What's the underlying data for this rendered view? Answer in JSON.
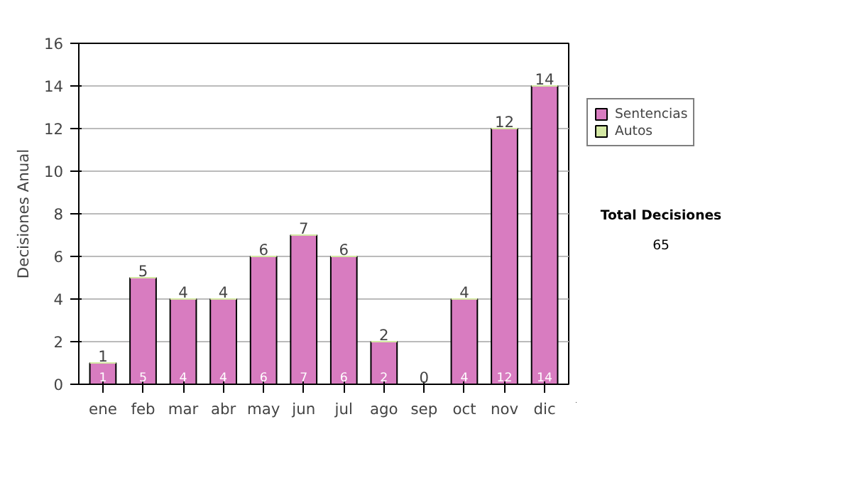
{
  "chart_data": {
    "type": "bar",
    "stacked": true,
    "ylabel": "Decisiones Anual",
    "categories": [
      "ene",
      "feb",
      "mar",
      "abr",
      "may",
      "jun",
      "jul",
      "ago",
      "sep",
      "oct",
      "nov",
      "dic"
    ],
    "series": [
      {
        "name": "Sentencias",
        "color": "#d87cc0",
        "values": [
          1,
          5,
          4,
          4,
          6,
          7,
          6,
          2,
          0,
          4,
          12,
          14
        ],
        "value_labels": [
          "1",
          "5",
          "4",
          "4",
          "6",
          "7",
          "6",
          "2",
          null,
          "4",
          "12",
          "14"
        ]
      },
      {
        "name": "Autos",
        "color": "#d4e8a4",
        "values": [
          0,
          0,
          0,
          0,
          0,
          0,
          0,
          0,
          0,
          0,
          0,
          0
        ]
      }
    ],
    "ylim": [
      0,
      16
    ],
    "yticks": [
      0,
      2,
      4,
      6,
      8,
      10,
      12,
      14,
      16
    ],
    "grid": "y",
    "legend": "right",
    "totals": [
      "1",
      "5",
      "4",
      "4",
      "6",
      "7",
      "6",
      "2",
      "0",
      "4",
      "12",
      "14"
    ],
    "annotations": [
      "Total Decisiones",
      "65"
    ]
  }
}
